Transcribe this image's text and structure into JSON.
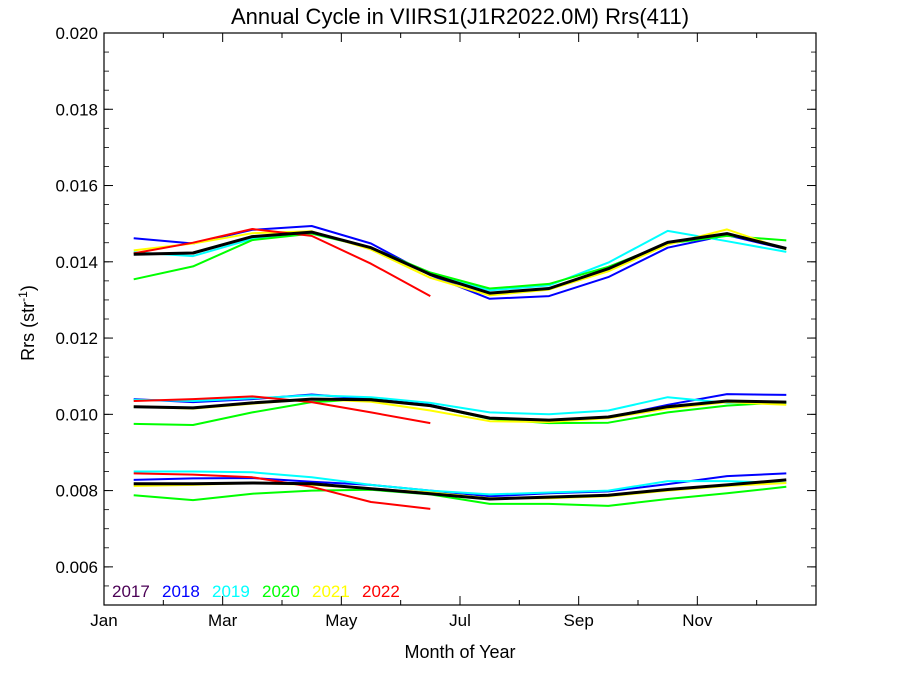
{
  "chart_data": {
    "type": "line",
    "title": "Annual Cycle in VIIRS1(J1R2022.0M) Rrs(411)",
    "xlabel": "Month of Year",
    "ylabel": "Rrs (str",
    "ylabel_superscript": "-1",
    "ylabel_suffix": ")",
    "xlim": [
      0,
      12
    ],
    "ylim": [
      0.005,
      0.02
    ],
    "x_ticks": [
      {
        "value": 0,
        "label": "Jan"
      },
      {
        "value": 2,
        "label": "Mar"
      },
      {
        "value": 4,
        "label": "May"
      },
      {
        "value": 6,
        "label": "Jul"
      },
      {
        "value": 8,
        "label": "Sep"
      },
      {
        "value": 10,
        "label": "Nov"
      }
    ],
    "y_ticks": [
      {
        "value": 0.006,
        "label": "0.006"
      },
      {
        "value": 0.008,
        "label": "0.008"
      },
      {
        "value": 0.01,
        "label": "0.010"
      },
      {
        "value": 0.012,
        "label": "0.012"
      },
      {
        "value": 0.014,
        "label": "0.014"
      },
      {
        "value": 0.016,
        "label": "0.016"
      },
      {
        "value": 0.018,
        "label": "0.018"
      },
      {
        "value": 0.02,
        "label": "0.020"
      }
    ],
    "x": [
      0.5,
      1.5,
      2.5,
      3.5,
      4.5,
      5.5,
      6.5,
      7.5,
      8.5,
      9.5,
      10.5,
      11.5
    ],
    "legend": [
      {
        "label": "2017",
        "color": "#4b0055"
      },
      {
        "label": "2018",
        "color": "#0000ff"
      },
      {
        "label": "2019",
        "color": "#00ffff"
      },
      {
        "label": "2020",
        "color": "#00ff00"
      },
      {
        "label": "2021",
        "color": "#ffff00"
      },
      {
        "label": "2022",
        "color": "#ff0000"
      }
    ],
    "legend_position": "bottom-left",
    "series": [
      {
        "name": "2018",
        "group": "high",
        "color": "#0000ff",
        "values": [
          0.01462,
          0.01448,
          0.01484,
          0.01494,
          0.01448,
          0.01365,
          0.01303,
          0.0131,
          0.0136,
          0.01437,
          0.0147,
          0.01433
        ]
      },
      {
        "name": "2019",
        "group": "high",
        "color": "#00ffff",
        "values": [
          0.01425,
          0.01415,
          0.0146,
          0.01478,
          0.01437,
          0.0137,
          0.01325,
          0.01338,
          0.01398,
          0.01481,
          0.01454,
          0.01426
        ]
      },
      {
        "name": "2020",
        "group": "high",
        "color": "#00ff00",
        "values": [
          0.01354,
          0.01388,
          0.01457,
          0.01474,
          0.01437,
          0.01372,
          0.0133,
          0.01342,
          0.01387,
          0.01448,
          0.01468,
          0.01456
        ]
      },
      {
        "name": "2021",
        "group": "high",
        "color": "#ffff00",
        "values": [
          0.0143,
          0.01448,
          0.01475,
          0.0148,
          0.01432,
          0.01358,
          0.01312,
          0.01327,
          0.01375,
          0.01445,
          0.01485,
          0.01432
        ]
      },
      {
        "name": "2022",
        "group": "high",
        "color": "#ff0000",
        "values": [
          0.01422,
          0.0145,
          0.01486,
          0.01468,
          0.01395,
          0.0131,
          null,
          null,
          null,
          null,
          null,
          null
        ]
      },
      {
        "name": "mean",
        "group": "high",
        "color": "#000000",
        "values": [
          0.0142,
          0.01423,
          0.01466,
          0.01478,
          0.01437,
          0.01367,
          0.01318,
          0.0133,
          0.01382,
          0.01451,
          0.01474,
          0.01435
        ]
      },
      {
        "name": "2018",
        "group": "mid",
        "color": "#0000ff",
        "values": [
          0.0104,
          0.01032,
          0.0104,
          0.01052,
          0.0104,
          0.01025,
          0.0099,
          0.00982,
          0.00992,
          0.01025,
          0.01053,
          0.01051
        ]
      },
      {
        "name": "2019",
        "group": "mid",
        "color": "#00ffff",
        "values": [
          0.01038,
          0.01035,
          0.01042,
          0.0105,
          0.01045,
          0.0103,
          0.01005,
          0.01,
          0.0101,
          0.01045,
          0.0103,
          0.0103
        ]
      },
      {
        "name": "2020",
        "group": "mid",
        "color": "#00ff00",
        "values": [
          0.00975,
          0.00972,
          0.01005,
          0.01032,
          0.0104,
          0.01022,
          0.00988,
          0.00977,
          0.00978,
          0.01005,
          0.01023,
          0.01032
        ]
      },
      {
        "name": "2021",
        "group": "mid",
        "color": "#ffff00",
        "values": [
          0.0102,
          0.01015,
          0.01028,
          0.0104,
          0.01033,
          0.0101,
          0.00982,
          0.0098,
          0.0099,
          0.01015,
          0.01032,
          0.01025
        ]
      },
      {
        "name": "2022",
        "group": "mid",
        "color": "#ff0000",
        "values": [
          0.01035,
          0.0104,
          0.01047,
          0.01032,
          0.01005,
          0.00977,
          null,
          null,
          null,
          null,
          null,
          null
        ]
      },
      {
        "name": "mean",
        "group": "mid",
        "color": "#000000",
        "values": [
          0.0102,
          0.01017,
          0.0103,
          0.0104,
          0.01038,
          0.01023,
          0.0099,
          0.00985,
          0.00993,
          0.0102,
          0.01035,
          0.01032
        ]
      },
      {
        "name": "2018",
        "group": "low",
        "color": "#0000ff",
        "values": [
          0.00828,
          0.00832,
          0.00833,
          0.00823,
          0.00815,
          0.008,
          0.00785,
          0.00793,
          0.00798,
          0.00817,
          0.00838,
          0.00845
        ]
      },
      {
        "name": "2019",
        "group": "low",
        "color": "#00ffff",
        "values": [
          0.0085,
          0.0085,
          0.00848,
          0.00835,
          0.00815,
          0.008,
          0.0079,
          0.00795,
          0.008,
          0.00825,
          0.00825,
          0.0082
        ]
      },
      {
        "name": "2020",
        "group": "low",
        "color": "#00ff00",
        "values": [
          0.00788,
          0.00775,
          0.00792,
          0.008,
          0.00802,
          0.0079,
          0.00765,
          0.00765,
          0.0076,
          0.00778,
          0.00793,
          0.0081
        ]
      },
      {
        "name": "2021",
        "group": "low",
        "color": "#ffff00",
        "values": [
          0.00812,
          0.00815,
          0.0082,
          0.00815,
          0.00805,
          0.00795,
          0.0078,
          0.0078,
          0.00785,
          0.008,
          0.00812,
          0.0082
        ]
      },
      {
        "name": "2022",
        "group": "low",
        "color": "#ff0000",
        "values": [
          0.00845,
          0.00842,
          0.00835,
          0.0081,
          0.0077,
          0.00752,
          null,
          null,
          null,
          null,
          null,
          null
        ]
      },
      {
        "name": "mean",
        "group": "low",
        "color": "#000000",
        "values": [
          0.00818,
          0.00818,
          0.0082,
          0.00818,
          0.00805,
          0.00792,
          0.00778,
          0.00783,
          0.00788,
          0.00803,
          0.00815,
          0.00828
        ]
      }
    ]
  }
}
